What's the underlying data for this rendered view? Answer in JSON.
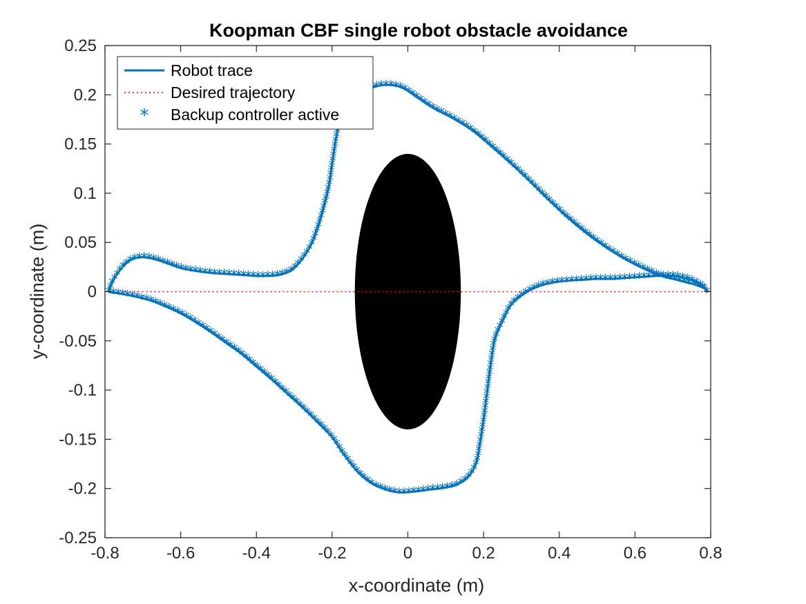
{
  "chart_data": {
    "type": "line",
    "title": "Koopman CBF single robot obstacle avoidance",
    "xlabel": "x-coordinate (m)",
    "ylabel": "y-coordinate (m)",
    "xlim": [
      -0.8,
      0.8
    ],
    "ylim": [
      -0.25,
      0.25
    ],
    "xticks": [
      -0.8,
      -0.6,
      -0.4,
      -0.2,
      0,
      0.2,
      0.4,
      0.6,
      0.8
    ],
    "xtick_labels": [
      "-0.8",
      "-0.6",
      "-0.4",
      "-0.2",
      "0",
      "0.2",
      "0.4",
      "0.6",
      "0.8"
    ],
    "yticks": [
      -0.25,
      -0.2,
      -0.15,
      -0.1,
      -0.05,
      0,
      0.05,
      0.1,
      0.15,
      0.2,
      0.25
    ],
    "ytick_labels": [
      "-0.25",
      "-0.2",
      "-0.15",
      "-0.1",
      "-0.05",
      "0",
      "0.05",
      "0.1",
      "0.15",
      "0.2",
      "0.25"
    ],
    "grid": false,
    "legend_position": "top-left",
    "colors": {
      "trace": "#0072BD",
      "desired": "#FF0000",
      "obstacle": "#000000"
    },
    "obstacle": {
      "shape": "ellipse",
      "center": [
        0,
        0
      ],
      "radius_x": 0.14,
      "radius_y": 0.14
    },
    "series": [
      {
        "name": "Robot trace",
        "style": "solid",
        "segments": [
          [
            [
              -0.79,
              0
            ],
            [
              -0.78,
              0.01
            ],
            [
              -0.76,
              0.022
            ],
            [
              -0.74,
              0.03
            ],
            [
              -0.72,
              0.034
            ],
            [
              -0.7,
              0.035
            ],
            [
              -0.68,
              0.034
            ],
            [
              -0.66,
              0.032
            ],
            [
              -0.63,
              0.028
            ],
            [
              -0.6,
              0.024
            ],
            [
              -0.56,
              0.021
            ],
            [
              -0.52,
              0.019
            ],
            [
              -0.48,
              0.018
            ],
            [
              -0.44,
              0.017
            ],
            [
              -0.4,
              0.016
            ],
            [
              -0.37,
              0.016
            ],
            [
              -0.34,
              0.017
            ],
            [
              -0.31,
              0.021
            ],
            [
              -0.29,
              0.028
            ],
            [
              -0.27,
              0.038
            ],
            [
              -0.25,
              0.052
            ],
            [
              -0.23,
              0.075
            ],
            [
              -0.21,
              0.105
            ],
            [
              -0.2,
              0.13
            ],
            [
              -0.19,
              0.155
            ],
            [
              -0.18,
              0.172
            ],
            [
              -0.16,
              0.186
            ],
            [
              -0.14,
              0.196
            ],
            [
              -0.11,
              0.204
            ],
            [
              -0.08,
              0.209
            ],
            [
              -0.05,
              0.21
            ],
            [
              -0.02,
              0.208
            ],
            [
              0.0,
              0.204
            ],
            [
              0.03,
              0.196
            ],
            [
              0.07,
              0.186
            ],
            [
              0.12,
              0.176
            ],
            [
              0.17,
              0.164
            ],
            [
              0.22,
              0.148
            ],
            [
              0.27,
              0.131
            ],
            [
              0.32,
              0.113
            ],
            [
              0.37,
              0.094
            ],
            [
              0.42,
              0.076
            ],
            [
              0.47,
              0.06
            ],
            [
              0.52,
              0.046
            ],
            [
              0.57,
              0.034
            ],
            [
              0.62,
              0.024
            ],
            [
              0.67,
              0.016
            ],
            [
              0.7,
              0.013
            ],
            [
              0.73,
              0.01
            ],
            [
              0.76,
              0.007
            ],
            [
              0.78,
              0.004
            ],
            [
              0.79,
              0.002
            ]
          ],
          [
            [
              0.79,
              0
            ],
            [
              0.78,
              0.005
            ],
            [
              0.76,
              0.01
            ],
            [
              0.74,
              0.013
            ],
            [
              0.72,
              0.015
            ],
            [
              0.7,
              0.016
            ],
            [
              0.66,
              0.016
            ],
            [
              0.62,
              0.015
            ],
            [
              0.58,
              0.014
            ],
            [
              0.54,
              0.013
            ],
            [
              0.5,
              0.013
            ],
            [
              0.46,
              0.012
            ],
            [
              0.42,
              0.011
            ],
            [
              0.38,
              0.009
            ],
            [
              0.35,
              0.006
            ],
            [
              0.32,
              0.001
            ],
            [
              0.29,
              -0.007
            ],
            [
              0.27,
              -0.015
            ],
            [
              0.25,
              -0.03
            ],
            [
              0.23,
              -0.048
            ],
            [
              0.22,
              -0.07
            ],
            [
              0.21,
              -0.1
            ],
            [
              0.2,
              -0.13
            ],
            [
              0.19,
              -0.155
            ],
            [
              0.18,
              -0.175
            ],
            [
              0.16,
              -0.188
            ],
            [
              0.13,
              -0.196
            ],
            [
              0.1,
              -0.199
            ],
            [
              0.06,
              -0.201
            ],
            [
              0.02,
              -0.203
            ],
            [
              -0.02,
              -0.204
            ],
            [
              -0.05,
              -0.202
            ],
            [
              -0.09,
              -0.196
            ],
            [
              -0.13,
              -0.184
            ],
            [
              -0.17,
              -0.165
            ],
            [
              -0.2,
              -0.148
            ],
            [
              -0.24,
              -0.132
            ],
            [
              -0.28,
              -0.117
            ],
            [
              -0.32,
              -0.103
            ],
            [
              -0.36,
              -0.089
            ],
            [
              -0.4,
              -0.076
            ],
            [
              -0.44,
              -0.063
            ],
            [
              -0.48,
              -0.052
            ],
            [
              -0.52,
              -0.041
            ],
            [
              -0.56,
              -0.031
            ],
            [
              -0.6,
              -0.022
            ],
            [
              -0.64,
              -0.015
            ],
            [
              -0.68,
              -0.009
            ],
            [
              -0.72,
              -0.005
            ],
            [
              -0.76,
              -0.002
            ],
            [
              -0.78,
              -0.001
            ],
            [
              -0.79,
              0
            ]
          ]
        ]
      },
      {
        "name": "Desired trajectory",
        "style": "dotted",
        "points": [
          [
            -0.79,
            0
          ],
          [
            0.79,
            0
          ]
        ]
      },
      {
        "name": "Backup controller active",
        "style": "markers",
        "marker": "*",
        "source": "Robot trace"
      }
    ]
  }
}
